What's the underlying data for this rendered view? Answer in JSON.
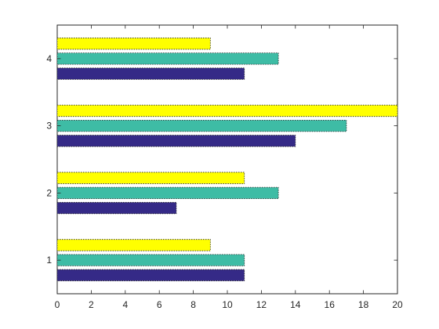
{
  "chart_data": {
    "type": "bar",
    "orientation": "horizontal",
    "categories": [
      "1",
      "2",
      "3",
      "4"
    ],
    "series": [
      {
        "values": [
          11,
          7,
          14,
          11
        ],
        "color": "#352a87"
      },
      {
        "values": [
          11,
          13,
          17,
          13
        ],
        "color": "#3ebca5"
      },
      {
        "values": [
          9,
          11,
          20,
          9
        ],
        "color": "#ffff00"
      }
    ],
    "xlim": [
      0,
      20
    ],
    "xticks": [
      "0",
      "2",
      "4",
      "6",
      "8",
      "10",
      "12",
      "14",
      "16",
      "18",
      "20"
    ],
    "title": "",
    "xlabel": "",
    "ylabel": "",
    "grid": false,
    "legend": "none",
    "bar_edge": "dotted",
    "bar_edge_color": "#262626",
    "axes_color": "#262626"
  }
}
